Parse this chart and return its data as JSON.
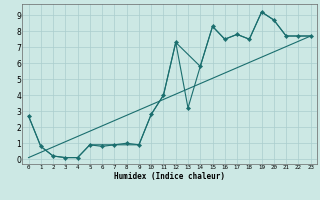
{
  "xlabel": "Humidex (Indice chaleur)",
  "bg_color": "#cce8e4",
  "grid_color": "#aacece",
  "line_color": "#1a6e6e",
  "xlim": [
    -0.5,
    23.5
  ],
  "ylim": [
    -0.3,
    9.7
  ],
  "xticks": [
    0,
    1,
    2,
    3,
    4,
    5,
    6,
    7,
    8,
    9,
    10,
    11,
    12,
    13,
    14,
    15,
    16,
    17,
    18,
    19,
    20,
    21,
    22,
    23
  ],
  "yticks": [
    0,
    1,
    2,
    3,
    4,
    5,
    6,
    7,
    8,
    9
  ],
  "line1_x": [
    0,
    1,
    2,
    3,
    4,
    5,
    6,
    7,
    8,
    9,
    10,
    11,
    12,
    13,
    14,
    15,
    16,
    17,
    18,
    19,
    20,
    21,
    22,
    23
  ],
  "line1_y": [
    2.7,
    0.8,
    0.2,
    0.1,
    0.1,
    0.9,
    0.8,
    0.9,
    1.0,
    0.9,
    2.8,
    4.0,
    7.3,
    3.2,
    5.8,
    8.3,
    7.5,
    7.8,
    7.5,
    9.2,
    8.7,
    7.7,
    7.7,
    7.7
  ],
  "line2_x": [
    0,
    1,
    2,
    3,
    4,
    5,
    9,
    10,
    11,
    12,
    14,
    15,
    16,
    17,
    18,
    19,
    20,
    21,
    22,
    23
  ],
  "line2_y": [
    2.7,
    0.8,
    0.2,
    0.1,
    0.1,
    0.9,
    0.9,
    2.8,
    4.0,
    7.3,
    5.8,
    8.3,
    7.5,
    7.8,
    7.5,
    9.2,
    8.7,
    7.7,
    7.7,
    7.7
  ],
  "line3_x": [
    0,
    23
  ],
  "line3_y": [
    0.1,
    7.7
  ]
}
